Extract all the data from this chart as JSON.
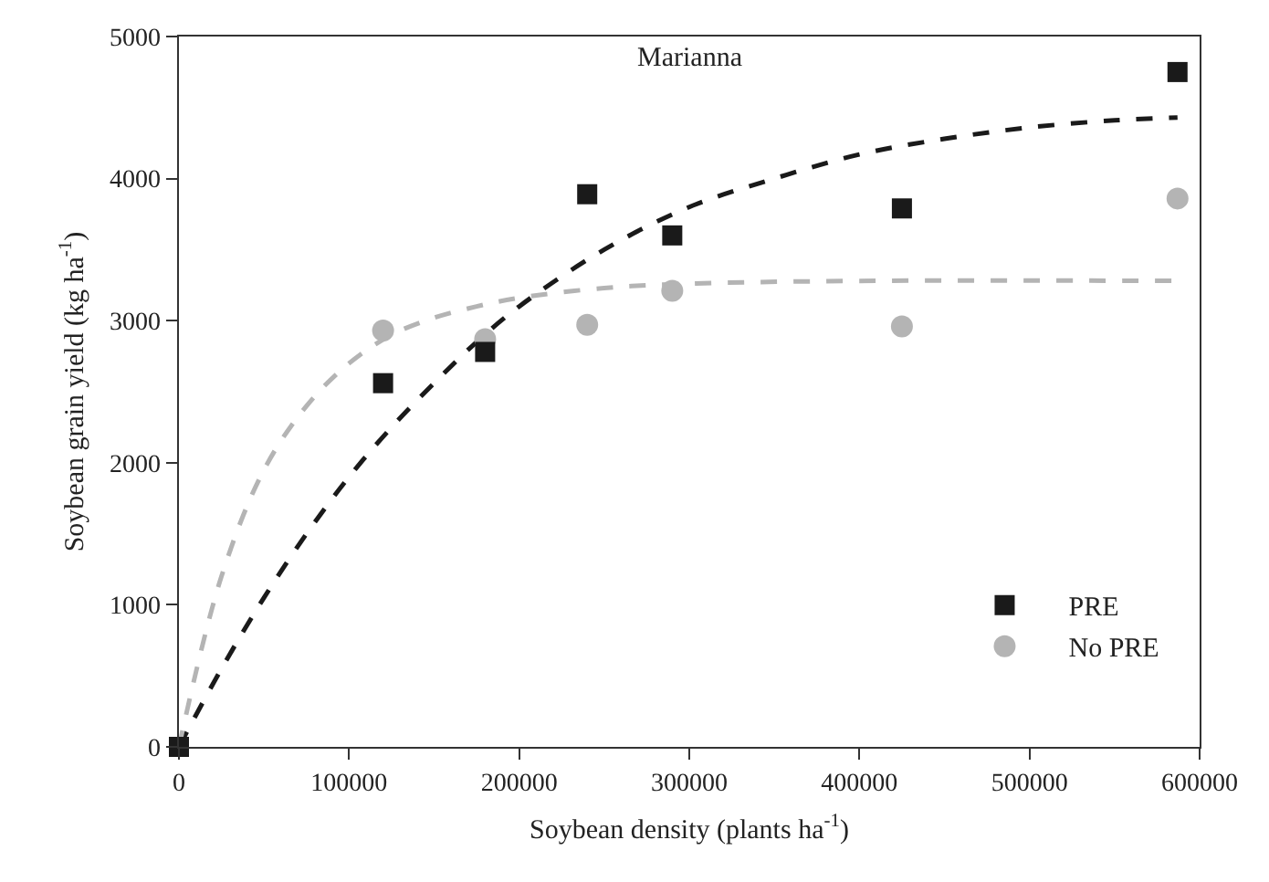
{
  "chart_data": {
    "type": "scatter",
    "annotations": [
      "Marianna"
    ],
    "xlabel": "Soybean density (plants ha$^{-1}$)",
    "ylabel": "Soybean grain yield (kg ha$^{-1}$)",
    "xlim": [
      0,
      600000
    ],
    "xticks": [
      0,
      100000,
      200000,
      300000,
      400000,
      500000,
      600000
    ],
    "ylim": [
      0,
      5000
    ],
    "yticks": [
      0,
      1000,
      2000,
      3000,
      4000,
      5000
    ],
    "grid": false,
    "legend": "bottom right",
    "series": [
      {
        "name": "PRE",
        "marker": "square",
        "color": "#1a1a1a",
        "x": [
          0,
          120000,
          180000,
          240000,
          290000,
          425000,
          587000
        ],
        "values": [
          0,
          2560,
          2780,
          3890,
          3600,
          3790,
          4750
        ]
      },
      {
        "name": "No PRE",
        "marker": "circle",
        "color": "#b4b4b4",
        "x": [
          120000,
          180000,
          240000,
          290000,
          425000,
          587000
        ],
        "values": [
          2930,
          2870,
          2970,
          3210,
          2960,
          3860
        ]
      },
      {
        "type": "line",
        "line_style": "dashed",
        "color": "#1a1a1a",
        "x": [
          0,
          25000,
          50000,
          75000,
          100000,
          125000,
          150000,
          175000,
          200000,
          250000,
          300000,
          350000,
          400000,
          450000,
          500000,
          550000,
          587000
        ],
        "values": [
          0,
          550,
          1050,
          1500,
          1900,
          2250,
          2560,
          2850,
          3100,
          3500,
          3800,
          4000,
          4170,
          4280,
          4360,
          4410,
          4430
        ]
      },
      {
        "type": "line",
        "line_style": "dashed",
        "color": "#b4b4b4",
        "x": [
          0,
          25000,
          50000,
          75000,
          100000,
          125000,
          150000,
          175000,
          200000,
          250000,
          300000,
          400000,
          587000
        ],
        "values": [
          0,
          1200,
          1950,
          2400,
          2700,
          2900,
          3020,
          3100,
          3160,
          3230,
          3260,
          3280,
          3280
        ]
      }
    ]
  }
}
